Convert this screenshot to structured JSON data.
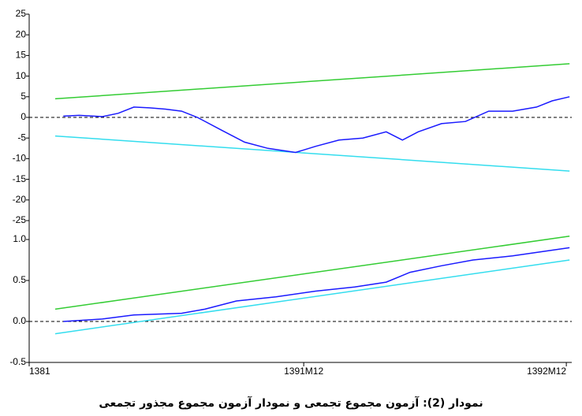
{
  "caption": "نمودار (2): آزمون مجموع تجمعی و نمودار آزمون مجموع مجذور تجمعی",
  "chart_data": [
    {
      "type": "line",
      "xlim": [
        0,
        100
      ],
      "ylim": [
        -25,
        25
      ],
      "yticks": [
        -25,
        -20,
        -15,
        -10,
        -5,
        0,
        5,
        10,
        15,
        20,
        25
      ],
      "series": [
        {
          "color": "#33cc33",
          "x": [
            4.8,
            99.6
          ],
          "values": [
            4.5,
            13
          ]
        },
        {
          "color": "#33ddee",
          "x": [
            4.8,
            99.6
          ],
          "values": [
            -4.5,
            -13
          ]
        },
        {
          "color": "#1a1aff",
          "x": [
            6.3,
            9.2,
            13.5,
            16.4,
            19.3,
            22.2,
            25.1,
            28.1,
            31.0,
            35.3,
            39.7,
            44.0,
            49.1,
            52.8,
            57.1,
            61.5,
            65.8,
            68.8,
            71.7,
            76.0,
            80.4,
            84.7,
            89.1,
            93.5,
            96.4,
            99.6
          ],
          "values": [
            0.3,
            0.5,
            0.2,
            1,
            2.5,
            2.3,
            2,
            1.5,
            0,
            -3,
            -6,
            -7.5,
            -8.5,
            -7,
            -5.5,
            -5,
            -3.5,
            -5.5,
            -3.5,
            -1.5,
            -1,
            1.5,
            1.5,
            2.5,
            4,
            5
          ]
        }
      ]
    },
    {
      "type": "line",
      "xlim": [
        0,
        100
      ],
      "ylim": [
        -0.5,
        1.5
      ],
      "yticks": [
        -0.5,
        {
          "value": 0,
          "label": "0.0"
        },
        0.5,
        {
          "value": 1,
          "label": "1.0"
        }
      ],
      "xticks": [
        {
          "value": 0,
          "label": "1381"
        },
        {
          "value": 50.6,
          "label": "1391M12"
        },
        {
          "value": 99,
          "label": "1392M12"
        }
      ],
      "series": [
        {
          "color": "#33cc33",
          "x": [
            4.8,
            99.6
          ],
          "values": [
            0.15,
            1.04
          ]
        },
        {
          "color": "#33ddee",
          "x": [
            4.8,
            99.6
          ],
          "values": [
            -0.15,
            0.75
          ]
        },
        {
          "color": "#1a1aff",
          "x": [
            6.3,
            13.5,
            19.3,
            28.1,
            32.4,
            38.2,
            45.5,
            52.8,
            60.0,
            65.8,
            70.2,
            76.0,
            81.8,
            89.1,
            99.6
          ],
          "values": [
            0,
            0.03,
            0.08,
            0.1,
            0.15,
            0.25,
            0.3,
            0.37,
            0.42,
            0.48,
            0.6,
            0.68,
            0.75,
            0.8,
            0.9
          ]
        }
      ]
    }
  ]
}
